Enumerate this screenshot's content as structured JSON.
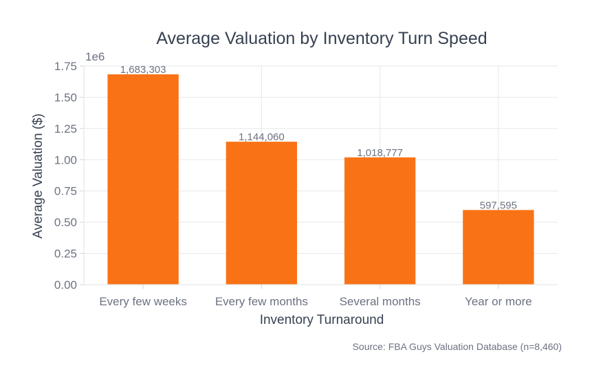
{
  "chart_data": {
    "type": "bar",
    "title": "Average Valuation by Inventory Turn Speed",
    "xlabel": "Inventory Turnaround",
    "ylabel": "Average Valuation ($)",
    "y_multiplier_label": "1e6",
    "categories": [
      "Every few weeks",
      "Every few months",
      "Several months",
      "Year or more"
    ],
    "values": [
      1683303,
      1144060,
      1018777,
      597595
    ],
    "data_labels": [
      "1,683,303",
      "1,144,060",
      "1,018,777",
      "597,595"
    ],
    "ylim": [
      0,
      1750000
    ],
    "y_ticks": [
      0,
      250000,
      500000,
      750000,
      1000000,
      1250000,
      1500000,
      1750000
    ],
    "y_tick_labels": [
      "0.00",
      "0.25",
      "0.50",
      "0.75",
      "1.00",
      "1.25",
      "1.50",
      "1.75"
    ],
    "grid": true,
    "bar_color": "#f97316",
    "source_note": "Source: FBA Guys Valuation Database (n=8,460)"
  }
}
